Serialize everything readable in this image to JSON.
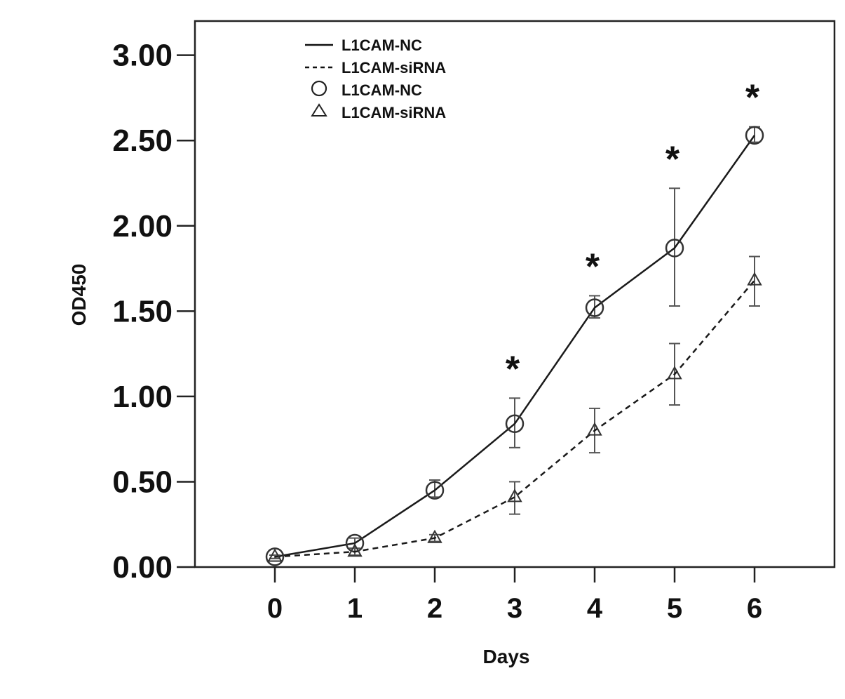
{
  "chart_data": {
    "type": "line",
    "xlabel": "Days",
    "ylabel": "OD450",
    "x": [
      0,
      1,
      2,
      3,
      4,
      5,
      6
    ],
    "x_tick_labels": [
      "0",
      "1",
      "2",
      "3",
      "4",
      "5",
      "6"
    ],
    "xlim": [
      -1,
      7
    ],
    "ylim": [
      0,
      3.2
    ],
    "y_ticks": [
      0,
      0.5,
      1,
      1.5,
      2,
      2.5,
      3
    ],
    "y_tick_labels": [
      "0.00",
      "0.50",
      "1.00",
      "1.50",
      "2.00",
      "2.50",
      "3.00"
    ],
    "grid": false,
    "legend_position": "top-left",
    "series": [
      {
        "name": "L1CAM-NC",
        "marker": "circle",
        "line_style": "solid",
        "values": [
          0.06,
          0.14,
          0.45,
          0.84,
          1.52,
          1.87,
          2.53
        ],
        "error_low": [
          0.05,
          0.11,
          0.41,
          0.7,
          1.46,
          1.53,
          2.49
        ],
        "error_high": [
          0.07,
          0.17,
          0.51,
          0.99,
          1.59,
          2.22,
          2.58
        ]
      },
      {
        "name": "L1CAM-siRNA",
        "marker": "triangle",
        "line_style": "dashed",
        "values": [
          0.06,
          0.09,
          0.17,
          0.41,
          0.8,
          1.13,
          1.68
        ],
        "error_low": [
          0.05,
          0.07,
          0.15,
          0.31,
          0.67,
          0.95,
          1.53
        ],
        "error_high": [
          0.07,
          0.11,
          0.19,
          0.5,
          0.93,
          1.31,
          1.82
        ]
      }
    ],
    "legend_entries": [
      {
        "label": "L1CAM-NC",
        "symbol": "line-solid"
      },
      {
        "label": "L1CAM-siRNA",
        "symbol": "line-dashed"
      },
      {
        "label": "L1CAM-NC",
        "symbol": "circle"
      },
      {
        "label": "L1CAM-siRNA",
        "symbol": "triangle"
      }
    ],
    "annotations": [
      {
        "text": "*",
        "x": 3
      },
      {
        "text": "*",
        "x": 4
      },
      {
        "text": "*",
        "x": 5
      },
      {
        "text": "*",
        "x": 6
      }
    ]
  }
}
